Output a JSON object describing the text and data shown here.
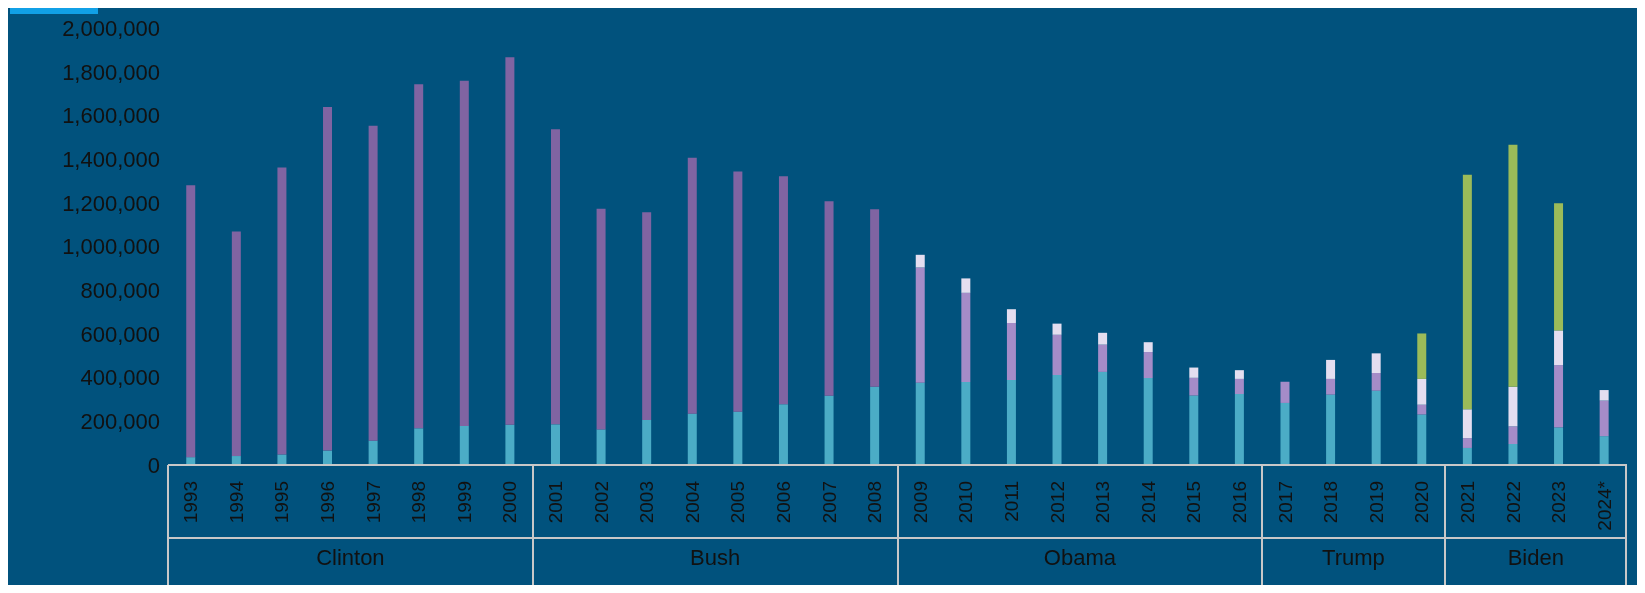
{
  "chart_data": {
    "type": "bar",
    "stacked": true,
    "categories": [
      "1993",
      "1994",
      "1995",
      "1996",
      "1997",
      "1998",
      "1999",
      "2000",
      "2001",
      "2002",
      "2003",
      "2004",
      "2005",
      "2006",
      "2007",
      "2008",
      "2009",
      "2010",
      "2011",
      "2012",
      "2013",
      "2014",
      "2015",
      "2016",
      "2017",
      "2018",
      "2019",
      "2020",
      "2021",
      "2022",
      "2023",
      "2024*"
    ],
    "series": [
      {
        "color": "#4bacc6",
        "values": [
          36000,
          41000,
          48000,
          66000,
          111000,
          168000,
          179000,
          184000,
          186000,
          163000,
          206000,
          235000,
          244000,
          278000,
          317000,
          358000,
          376000,
          380000,
          389000,
          412000,
          426000,
          398000,
          318000,
          325000,
          284000,
          322000,
          340000,
          231000,
          78000,
          96000,
          172000,
          132000
        ]
      },
      {
        "color": "#8064a2",
        "values": [
          1244000,
          1028000,
          1313000,
          1573000,
          1442000,
          1575000,
          1580000,
          1682000,
          1351000,
          1010000,
          951000,
          1171000,
          1099000,
          1044000,
          890000,
          812000,
          null,
          null,
          null,
          null,
          null,
          null,
          null,
          null,
          null,
          null,
          null,
          null,
          null,
          null,
          null,
          null
        ]
      },
      {
        "color": "#a58cc8",
        "values": [
          null,
          null,
          null,
          null,
          null,
          null,
          null,
          null,
          null,
          null,
          null,
          null,
          null,
          null,
          null,
          null,
          528000,
          408000,
          261000,
          184000,
          125000,
          119000,
          81000,
          69000,
          97000,
          72000,
          81000,
          45000,
          45000,
          81000,
          285000,
          163000
        ]
      },
      {
        "color": "#e4def0",
        "values": [
          null,
          null,
          null,
          null,
          null,
          null,
          null,
          null,
          null,
          null,
          null,
          null,
          null,
          null,
          null,
          null,
          58000,
          66000,
          63000,
          51000,
          54000,
          45000,
          47000,
          40000,
          0,
          87000,
          90000,
          118000,
          132000,
          181000,
          159000,
          48000
        ]
      },
      {
        "color": "#9bbb59",
        "values": [
          null,
          null,
          null,
          null,
          null,
          null,
          null,
          null,
          null,
          null,
          null,
          null,
          null,
          null,
          null,
          null,
          null,
          null,
          null,
          null,
          null,
          null,
          null,
          null,
          null,
          null,
          null,
          208000,
          1073000,
          1108000,
          582000,
          null
        ]
      }
    ],
    "ylim": [
      0,
      2000000
    ],
    "yticks": [
      0,
      {
        "value": 200000,
        "label": "200,000"
      },
      {
        "value": 400000,
        "label": "400,000"
      },
      {
        "value": 600000,
        "label": "600,000"
      },
      {
        "value": 800000,
        "label": "800,000"
      },
      {
        "value": 1000000,
        "label": "1,000,000"
      },
      {
        "value": 1200000,
        "label": "1,200,000"
      },
      {
        "value": 1400000,
        "label": "1,400,000"
      },
      {
        "value": 1600000,
        "label": "1,600,000"
      },
      {
        "value": 1800000,
        "label": "1,800,000"
      },
      {
        "value": 2000000,
        "label": "2,000,000"
      }
    ],
    "annotations": [
      "Clinton",
      "Bush",
      "Obama",
      "Trump",
      "Biden"
    ]
  }
}
